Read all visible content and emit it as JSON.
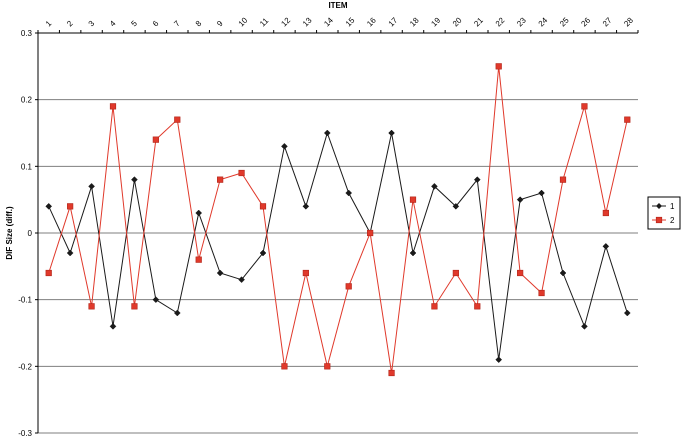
{
  "chart_data": {
    "type": "line",
    "title": "ITEM",
    "xlabel": "",
    "ylabel": "DIF Size (diff.)",
    "x": [
      1,
      2,
      3,
      4,
      5,
      6,
      7,
      8,
      9,
      10,
      11,
      12,
      13,
      14,
      15,
      16,
      17,
      18,
      19,
      20,
      21,
      22,
      23,
      24,
      25,
      26,
      27,
      28
    ],
    "yticks": [
      "0.3",
      "0.2",
      "0.1",
      "0",
      "-0.1",
      "-0.2",
      "-0.3"
    ],
    "ylim": [
      -0.3,
      0.3
    ],
    "grid": true,
    "legend_position": "right",
    "series": [
      {
        "name": "1",
        "color": "#1a1a1a",
        "marker": "diamond",
        "values": [
          0.04,
          -0.03,
          0.07,
          -0.14,
          0.08,
          -0.1,
          -0.12,
          0.03,
          -0.06,
          -0.07,
          -0.03,
          0.13,
          0.04,
          0.15,
          0.06,
          0.0,
          0.15,
          -0.03,
          0.07,
          0.04,
          0.08,
          -0.19,
          0.05,
          0.06,
          -0.06,
          -0.14,
          -0.02,
          -0.12
        ]
      },
      {
        "name": "2",
        "color": "#e0392b",
        "marker": "square",
        "values": [
          -0.06,
          0.04,
          -0.11,
          0.19,
          -0.11,
          0.14,
          0.17,
          -0.04,
          0.08,
          0.09,
          0.04,
          -0.2,
          -0.06,
          -0.2,
          -0.08,
          0.0,
          -0.21,
          0.05,
          -0.11,
          -0.06,
          -0.11,
          0.25,
          -0.06,
          -0.09,
          0.08,
          0.19,
          0.03,
          0.17
        ]
      }
    ]
  }
}
